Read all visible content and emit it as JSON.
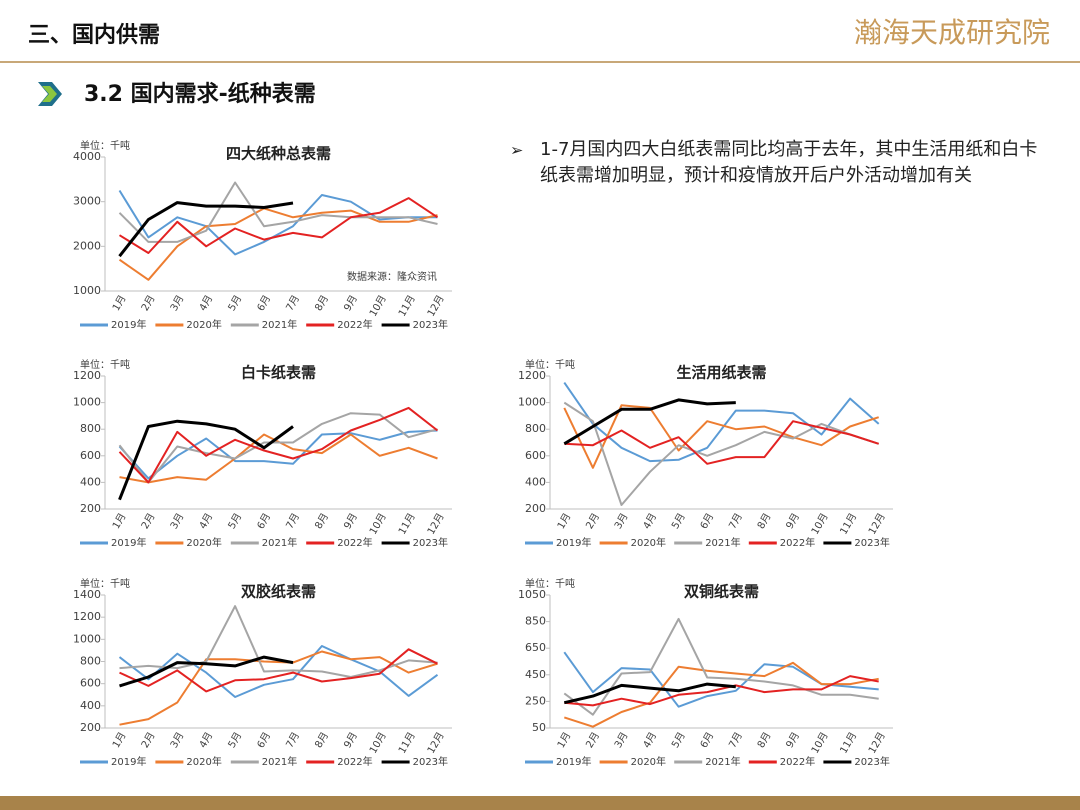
{
  "header": {
    "title": "三、国内供需",
    "logo": "瀚海天成研究院"
  },
  "section_title": "3.2 国内需求-纸种表需",
  "bullet": "1-7月国内四大白纸表需同比均高于去年，其中生活用纸和白卡纸表需增加明显，预计和疫情放开后户外活动增加有关",
  "chart_data": [
    {
      "type": "line",
      "title": "四大纸种总表需",
      "unit": "单位：千吨",
      "annotation": "数据来源：隆众资讯",
      "categories": [
        "1月",
        "2月",
        "3月",
        "4月",
        "5月",
        "6月",
        "7月",
        "8月",
        "9月",
        "10月",
        "11月",
        "12月"
      ],
      "ylim": [
        1000,
        4000
      ],
      "yticks": [
        1000,
        2000,
        3000,
        4000
      ],
      "series": [
        {
          "name": "2019年",
          "color": "#5b9bd5",
          "values": [
            3250,
            2200,
            2650,
            2450,
            1820,
            2100,
            2450,
            3150,
            3000,
            2600,
            2650,
            2650
          ]
        },
        {
          "name": "2020年",
          "color": "#ed7d31",
          "values": [
            1700,
            1250,
            2000,
            2450,
            2500,
            2850,
            2650,
            2750,
            2800,
            2550,
            2550,
            2700
          ]
        },
        {
          "name": "2021年",
          "color": "#a5a5a5",
          "values": [
            2750,
            2100,
            2100,
            2350,
            3430,
            2450,
            2550,
            2700,
            2650,
            2650,
            2650,
            2500
          ]
        },
        {
          "name": "2022年",
          "color": "#e32222",
          "values": [
            2250,
            1850,
            2550,
            2000,
            2400,
            2150,
            2300,
            2200,
            2650,
            2750,
            3080,
            2650
          ]
        },
        {
          "name": "2023年",
          "color": "#000000",
          "values": [
            1780,
            2600,
            2980,
            2900,
            2900,
            2870,
            2970,
            null,
            null,
            null,
            null,
            null
          ]
        }
      ]
    },
    {
      "type": "line",
      "title": "白卡纸表需",
      "unit": "单位：千吨",
      "categories": [
        "1月",
        "2月",
        "3月",
        "4月",
        "5月",
        "6月",
        "7月",
        "8月",
        "9月",
        "10月",
        "11月",
        "12月"
      ],
      "ylim": [
        200,
        1200
      ],
      "yticks": [
        200,
        400,
        600,
        800,
        1000,
        1200
      ],
      "series": [
        {
          "name": "2019年",
          "color": "#5b9bd5",
          "values": [
            670,
            430,
            600,
            730,
            560,
            560,
            540,
            760,
            770,
            720,
            780,
            790
          ]
        },
        {
          "name": "2020年",
          "color": "#ed7d31",
          "values": [
            440,
            400,
            440,
            420,
            580,
            760,
            650,
            620,
            760,
            600,
            660,
            580
          ]
        },
        {
          "name": "2021年",
          "color": "#a5a5a5",
          "values": [
            680,
            400,
            670,
            620,
            580,
            700,
            700,
            840,
            920,
            910,
            740,
            800
          ]
        },
        {
          "name": "2022年",
          "color": "#e32222",
          "values": [
            630,
            400,
            780,
            600,
            720,
            640,
            580,
            650,
            790,
            870,
            960,
            790
          ]
        },
        {
          "name": "2023年",
          "color": "#000000",
          "values": [
            270,
            820,
            860,
            840,
            800,
            660,
            820,
            null,
            null,
            null,
            null,
            null
          ]
        }
      ]
    },
    {
      "type": "line",
      "title": "生活用纸表需",
      "unit": "单位：千吨",
      "categories": [
        "1月",
        "2月",
        "3月",
        "4月",
        "5月",
        "6月",
        "7月",
        "8月",
        "9月",
        "10月",
        "11月",
        "12月"
      ],
      "ylim": [
        200,
        1200
      ],
      "yticks": [
        200,
        400,
        600,
        800,
        1000,
        1200
      ],
      "series": [
        {
          "name": "2019年",
          "color": "#5b9bd5",
          "values": [
            1150,
            840,
            660,
            560,
            570,
            660,
            940,
            940,
            920,
            760,
            1030,
            840
          ]
        },
        {
          "name": "2020年",
          "color": "#ed7d31",
          "values": [
            960,
            510,
            980,
            960,
            640,
            860,
            800,
            820,
            740,
            680,
            820,
            890
          ]
        },
        {
          "name": "2021年",
          "color": "#a5a5a5",
          "values": [
            1000,
            860,
            230,
            480,
            680,
            600,
            680,
            780,
            730,
            840,
            760,
            690
          ]
        },
        {
          "name": "2022年",
          "color": "#e32222",
          "values": [
            690,
            680,
            790,
            660,
            740,
            540,
            590,
            590,
            860,
            810,
            760,
            690
          ]
        },
        {
          "name": "2023年",
          "color": "#000000",
          "values": [
            690,
            820,
            950,
            950,
            1020,
            990,
            1000,
            null,
            null,
            null,
            null,
            null
          ]
        }
      ]
    },
    {
      "type": "line",
      "title": "双胶纸表需",
      "unit": "单位：千吨",
      "categories": [
        "1月",
        "2月",
        "3月",
        "4月",
        "5月",
        "6月",
        "7月",
        "8月",
        "9月",
        "10月",
        "11月",
        "12月"
      ],
      "ylim": [
        200,
        1400
      ],
      "yticks": [
        200,
        400,
        600,
        800,
        1000,
        1200,
        1400
      ],
      "series": [
        {
          "name": "2019年",
          "color": "#5b9bd5",
          "values": [
            840,
            640,
            870,
            700,
            480,
            590,
            640,
            940,
            820,
            710,
            490,
            680
          ]
        },
        {
          "name": "2020年",
          "color": "#ed7d31",
          "values": [
            230,
            280,
            430,
            820,
            820,
            800,
            790,
            890,
            820,
            840,
            700,
            780
          ]
        },
        {
          "name": "2021年",
          "color": "#a5a5a5",
          "values": [
            740,
            760,
            740,
            800,
            1300,
            710,
            720,
            710,
            660,
            720,
            810,
            790
          ]
        },
        {
          "name": "2022年",
          "color": "#e32222",
          "values": [
            700,
            580,
            720,
            530,
            630,
            640,
            700,
            620,
            650,
            690,
            910,
            780
          ]
        },
        {
          "name": "2023年",
          "color": "#000000",
          "values": [
            580,
            660,
            790,
            780,
            760,
            840,
            790,
            null,
            null,
            null,
            null,
            null
          ]
        }
      ]
    },
    {
      "type": "line",
      "title": "双铜纸表需",
      "unit": "单位：千吨",
      "categories": [
        "1月",
        "2月",
        "3月",
        "4月",
        "5月",
        "6月",
        "7月",
        "8月",
        "9月",
        "10月",
        "11月",
        "12月"
      ],
      "ylim": [
        50,
        1050
      ],
      "yticks": [
        50,
        250,
        450,
        650,
        850,
        1050
      ],
      "series": [
        {
          "name": "2019年",
          "color": "#5b9bd5",
          "values": [
            620,
            320,
            500,
            490,
            210,
            290,
            330,
            530,
            510,
            380,
            360,
            340
          ]
        },
        {
          "name": "2020年",
          "color": "#ed7d31",
          "values": [
            130,
            60,
            170,
            240,
            510,
            480,
            460,
            440,
            540,
            380,
            380,
            420
          ]
        },
        {
          "name": "2021年",
          "color": "#a5a5a5",
          "values": [
            310,
            150,
            460,
            470,
            870,
            430,
            420,
            400,
            370,
            300,
            300,
            270
          ]
        },
        {
          "name": "2022年",
          "color": "#e32222",
          "values": [
            240,
            220,
            270,
            230,
            300,
            320,
            370,
            320,
            340,
            340,
            440,
            400
          ]
        },
        {
          "name": "2023年",
          "color": "#000000",
          "values": [
            240,
            290,
            370,
            350,
            330,
            380,
            360,
            null,
            null,
            null,
            null,
            null
          ]
        }
      ]
    }
  ]
}
